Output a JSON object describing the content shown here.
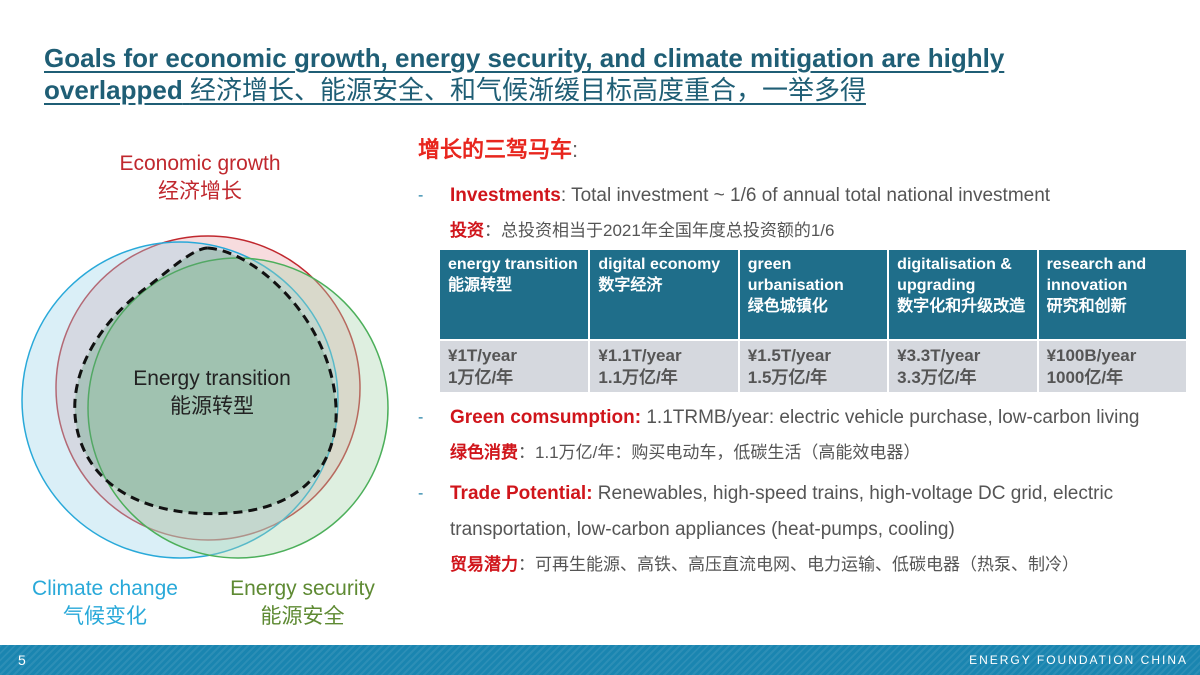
{
  "title": {
    "en_line1": "Goals for economic growth, energy security, and climate mitigation are highly",
    "en_line2": "overlapped",
    "cn": "经济增长、能源安全、和气候渐缓目标高度重合，一举多得"
  },
  "venn": {
    "economic_en": "Economic growth",
    "economic_cn": "经济增长",
    "transition_en": "Energy transition",
    "transition_cn": "能源转型",
    "climate_en": "Climate change",
    "climate_cn": "气候变化",
    "security_en": "Energy security",
    "security_cn": "能源安全",
    "colors": {
      "economic": "#c0282e",
      "climate": "#29a9d9",
      "security": "#5e8a33"
    }
  },
  "heading": {
    "text": "增长的三驾马车",
    "colon": ":"
  },
  "investments": {
    "label": "Investments",
    "text": ": Total investment ~ 1/6 of  annual total national investment",
    "cn_label": "投资",
    "cn_text": "：总投资相当于2021年全国年度总投资额的1/6"
  },
  "table": {
    "headers": [
      {
        "en": "energy transition",
        "cn": "能源转型"
      },
      {
        "en": "digital economy",
        "cn": "数字经济"
      },
      {
        "en": "green urbanisation",
        "cn": "绿色城镇化"
      },
      {
        "en": "digitalisation & upgrading",
        "cn": "数字化和升级改造"
      },
      {
        "en": "research and innovation",
        "cn": "研究和创新"
      }
    ],
    "values": [
      {
        "en": "¥1T/year",
        "cn": "1万亿/年"
      },
      {
        "en": "¥1.1T/year",
        "cn": "1.1万亿/年"
      },
      {
        "en": "¥1.5T/year",
        "cn": "1.5万亿/年"
      },
      {
        "en": "¥3.3T/year",
        "cn": "3.3万亿/年"
      },
      {
        "en": "¥100B/year",
        "cn": "1000亿/年"
      }
    ]
  },
  "green": {
    "label": "Green comsumption:",
    "text": " 1.1TRMB/year: electric vehicle purchase, low-carbon living",
    "cn_label": "绿色消费",
    "cn_text": "：1.1万亿/年：购买电动车，低碳生活（高能效电器）"
  },
  "trade": {
    "label": "Trade Potential:",
    "text": " Renewables, high-speed trains, high-voltage DC grid, electric transportation, low-carbon appliances (heat-pumps, cooling)",
    "cn_label": "贸易潜力",
    "cn_text": "：可再生能源、高铁、高压直流电网、电力运输、低碳电器（热泵、制冷）"
  },
  "footer": {
    "page": "5",
    "brand": "ENERGY FOUNDATION CHINA"
  }
}
